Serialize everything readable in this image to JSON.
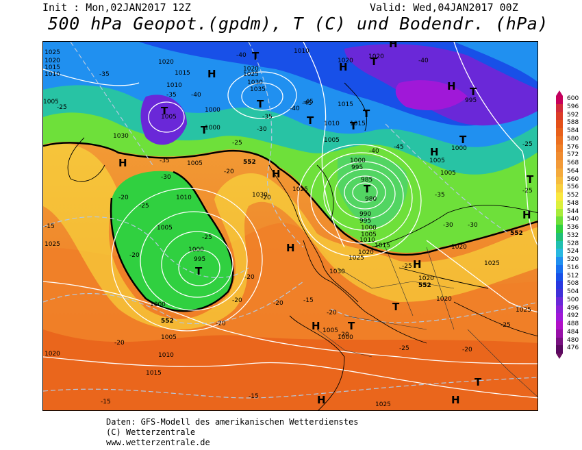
{
  "header": {
    "init": "Init : Mon,02JAN2017 12Z",
    "valid": "Valid: Wed,04JAN2017 00Z",
    "title": "500 hPa Geopot.(gpdm), T (C) und Bodendr. (hPa)"
  },
  "footer": {
    "line1": "Daten: GFS-Modell des amerikanischen Wetterdienstes",
    "line2": "(C) Wetterzentrale",
    "line3": "www.wetterzentrale.de"
  },
  "legend": {
    "values": [
      "600",
      "596",
      "592",
      "588",
      "584",
      "580",
      "576",
      "572",
      "568",
      "564",
      "560",
      "556",
      "552",
      "548",
      "544",
      "540",
      "536",
      "532",
      "528",
      "524",
      "520",
      "516",
      "512",
      "508",
      "504",
      "500",
      "496",
      "492",
      "488",
      "484",
      "480",
      "476"
    ],
    "colors": [
      "#c8005a",
      "#d22a3a",
      "#dc3c28",
      "#e45018",
      "#e8601a",
      "#ec7020",
      "#ef8028",
      "#f08c30",
      "#f29a38",
      "#f4aa3c",
      "#f6bc3e",
      "#f8d040",
      "#fae840",
      "#dcf03c",
      "#a8ec3a",
      "#6ee03a",
      "#30d040",
      "#20c078",
      "#20c0b0",
      "#28b8e0",
      "#2090f0",
      "#1870f0",
      "#1850e8",
      "#2838e0",
      "#4030d8",
      "#6a28d8",
      "#8a20d8",
      "#a018d8",
      "#b010c8",
      "#9810a8",
      "#781080",
      "#5a0860"
    ]
  },
  "map": {
    "highs": [
      "H",
      "H",
      "H",
      "H",
      "H",
      "H",
      "H",
      "H",
      "H",
      "H",
      "H",
      "H",
      "H"
    ],
    "lows": [
      "T",
      "T",
      "T",
      "T",
      "T",
      "T",
      "T",
      "T",
      "T",
      "T",
      "T",
      "T",
      "T",
      "T",
      "T",
      "T"
    ],
    "isobar_labels": [
      "1025",
      "1020",
      "1015",
      "1010",
      "1005",
      "1020",
      "1015",
      "1010",
      "1005",
      "1000",
      "1035",
      "1030",
      "1025",
      "1020",
      "1010",
      "1005",
      "1020",
      "1020",
      "1015",
      "1015",
      "1010",
      "1005",
      "1000",
      "995",
      "985",
      "980",
      "990",
      "995",
      "1000",
      "1005",
      "1010",
      "1015",
      "1020",
      "1025",
      "1030",
      "1030",
      "1010",
      "1005",
      "1000",
      "995",
      "1000",
      "1005",
      "1010",
      "1015",
      "1025",
      "1030",
      "1025",
      "1020",
      "1020",
      "1025",
      "1020",
      "1025",
      "995",
      "1000",
      "1005",
      "1005",
      "1000",
      "1020",
      "1025",
      "1005",
      "1000"
    ],
    "temp_labels": [
      "-35",
      "-25",
      "-35",
      "-40",
      "-40",
      "-45",
      "-40",
      "-35",
      "-30",
      "-35",
      "-25",
      "-30",
      "-20",
      "-25",
      "-15",
      "-20",
      "-25",
      "-20",
      "-20",
      "-20",
      "-20",
      "-20",
      "-15",
      "-15",
      "-20",
      "-25",
      "-25",
      "-30",
      "-35",
      "-40",
      "-45",
      "-40",
      "-45",
      "-30",
      "-20",
      "-25",
      "-20",
      "-20",
      "-15",
      "-25",
      "-25",
      "-20"
    ],
    "contour_552": [
      "552",
      "552",
      "552",
      "552"
    ]
  }
}
